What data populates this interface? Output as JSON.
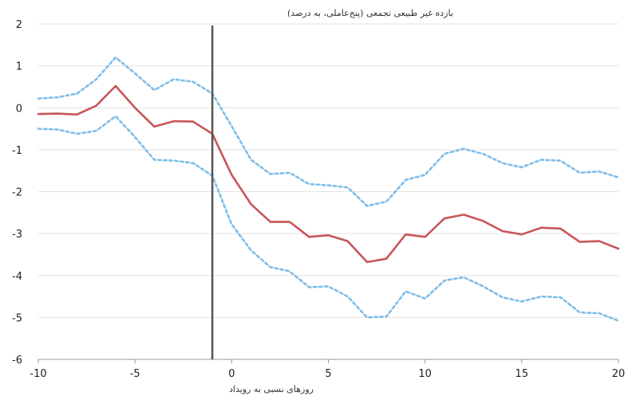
{
  "chart_data": {
    "type": "line",
    "title": "",
    "ylabel": "بازده غیر طبیعی تجمعی (پنج‌عاملی، به درصد)",
    "xlabel": "روزهای نسبی به رویداد",
    "xlim": [
      -10,
      20
    ],
    "ylim": [
      -6,
      2
    ],
    "x_ticks": [
      "-10",
      "-5",
      "0",
      "5",
      "10",
      "15",
      "20"
    ],
    "y_ticks": [
      "2",
      "1",
      "0",
      "-1",
      "-2",
      "-3",
      "-4",
      "-5",
      "-6"
    ],
    "grid": "horizontal",
    "event_line_x": -1,
    "x": [
      -10,
      -9,
      -8,
      -7,
      -6,
      -5,
      -4,
      -3,
      -2,
      -1,
      0,
      1,
      2,
      3,
      4,
      5,
      6,
      7,
      8,
      9,
      10,
      11,
      12,
      13,
      14,
      15,
      16,
      17,
      18,
      19,
      20
    ],
    "series": [
      {
        "style": "solid",
        "color": "#c8555a",
        "values": [
          -0.15,
          -0.14,
          -0.16,
          0.05,
          0.52,
          0.0,
          -0.45,
          -0.32,
          -0.33,
          -0.62,
          -1.6,
          -2.3,
          -2.72,
          -2.72,
          -3.08,
          -3.04,
          -3.18,
          -3.68,
          -3.6,
          -3.02,
          -3.08,
          -2.64,
          -2.55,
          -2.7,
          -2.94,
          -3.02,
          -2.86,
          -2.88,
          -3.2,
          -3.18,
          -3.36
        ]
      },
      {
        "style": "dotted",
        "color": "#7dbde8",
        "values": [
          0.22,
          0.25,
          0.34,
          0.68,
          1.2,
          0.82,
          0.42,
          0.68,
          0.62,
          0.34,
          -0.44,
          -1.24,
          -1.58,
          -1.55,
          -1.82,
          -1.85,
          -1.9,
          -2.34,
          -2.24,
          -1.72,
          -1.6,
          -1.1,
          -0.98,
          -1.1,
          -1.32,
          -1.42,
          -1.24,
          -1.26,
          -1.55,
          -1.52,
          -1.66
        ]
      },
      {
        "style": "dotted",
        "color": "#7dbde8",
        "values": [
          -0.5,
          -0.52,
          -0.62,
          -0.55,
          -0.2,
          -0.7,
          -1.24,
          -1.26,
          -1.32,
          -1.62,
          -2.78,
          -3.4,
          -3.8,
          -3.9,
          -4.28,
          -4.26,
          -4.5,
          -5.0,
          -4.98,
          -4.38,
          -4.55,
          -4.12,
          -4.04,
          -4.26,
          -4.52,
          -4.62,
          -4.5,
          -4.52,
          -4.88,
          -4.9,
          -5.08
        ]
      }
    ]
  }
}
